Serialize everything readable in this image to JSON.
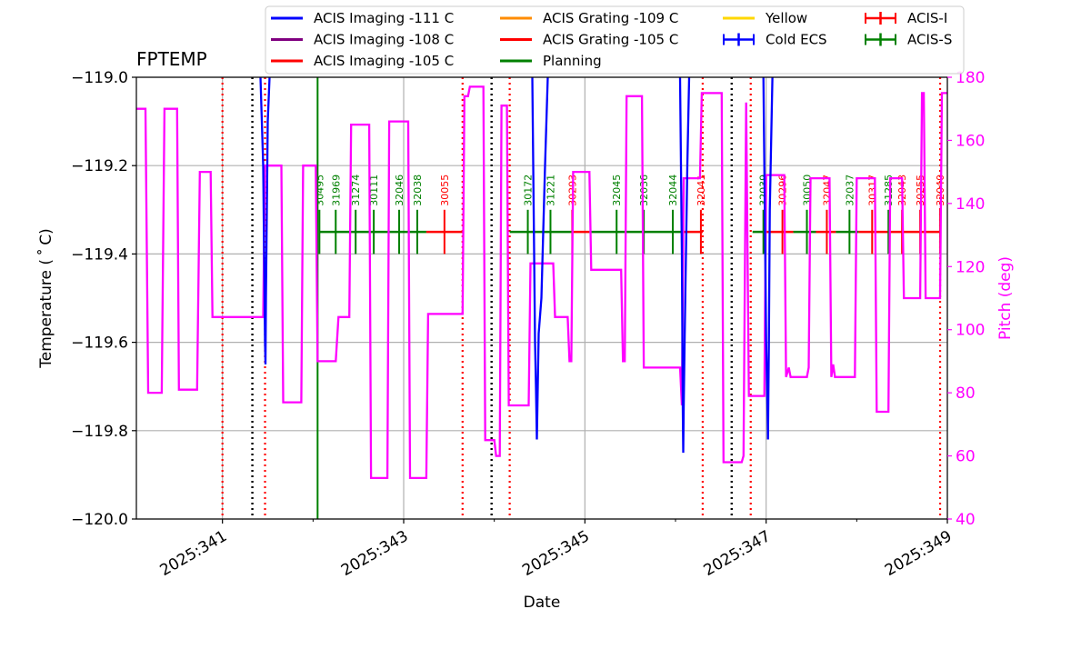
{
  "chart_data": {
    "type": "line",
    "title": "FPTEMP",
    "xlabel": "Date",
    "ylabel": "Temperature ($^\\circ$C)",
    "ylabel_display": "Temperature ( ˚ C)",
    "y2label": "Pitch (deg)",
    "xlim": [
      340.05,
      349.0
    ],
    "ylim": [
      -120.0,
      -119.0
    ],
    "y2lim": [
      40,
      180
    ],
    "x_ticks": [
      {
        "value": 341,
        "label": "2025:341"
      },
      {
        "value": 343,
        "label": "2025:343"
      },
      {
        "value": 345,
        "label": "2025:345"
      },
      {
        "value": 347,
        "label": "2025:347"
      },
      {
        "value": 349,
        "label": "2025:349"
      }
    ],
    "x_minor_ticks": [
      342,
      344,
      346,
      348
    ],
    "y_ticks": [
      {
        "value": -119.0,
        "label": "−119.0"
      },
      {
        "value": -119.2,
        "label": "−119.2"
      },
      {
        "value": -119.4,
        "label": "−119.4"
      },
      {
        "value": -119.6,
        "label": "−119.6"
      },
      {
        "value": -119.8,
        "label": "−119.8"
      },
      {
        "value": -120.0,
        "label": "−120.0"
      }
    ],
    "y2_ticks": [
      {
        "value": 180,
        "label": "180"
      },
      {
        "value": 160,
        "label": "160"
      },
      {
        "value": 140,
        "label": "140"
      },
      {
        "value": 120,
        "label": "120"
      },
      {
        "value": 100,
        "label": "100"
      },
      {
        "value": 80,
        "label": "80"
      },
      {
        "value": 60,
        "label": "60"
      },
      {
        "value": 40,
        "label": "40"
      }
    ],
    "grid": true,
    "legend": {
      "position": "top",
      "columns": [
        [
          {
            "label": "ACIS Imaging -111 C",
            "color": "#0000ff",
            "style": "line"
          },
          {
            "label": "ACIS Imaging -108 C",
            "color": "#800080",
            "style": "line"
          },
          {
            "label": "ACIS Imaging -105 C",
            "color": "#ff0000",
            "style": "line"
          }
        ],
        [
          {
            "label": "ACIS Grating -109 C",
            "color": "#ff8c00",
            "style": "line"
          },
          {
            "label": "ACIS Grating -105 C",
            "color": "#ff0000",
            "style": "line"
          },
          {
            "label": "Planning",
            "color": "#008000",
            "style": "line"
          }
        ],
        [
          {
            "label": "Yellow",
            "color": "#ffd700",
            "style": "line"
          },
          {
            "label": "Cold ECS",
            "color": "#0000ff",
            "style": "errbar"
          }
        ],
        [
          {
            "label": "ACIS-I",
            "color": "#ff0000",
            "style": "errbar"
          },
          {
            "label": "ACIS-S",
            "color": "#008000",
            "style": "errbar"
          }
        ]
      ]
    },
    "temperature_series": {
      "name": "FPTEMP",
      "color": "#0000ff",
      "points": [
        [
          341.42,
          -119.0
        ],
        [
          341.45,
          -119.2
        ],
        [
          341.47,
          -119.6
        ],
        [
          341.475,
          -119.65
        ],
        [
          341.48,
          -119.5
        ],
        [
          341.5,
          -119.1
        ],
        [
          341.52,
          -119.0
        ],
        [
          344.42,
          -119.0
        ],
        [
          344.44,
          -119.4
        ],
        [
          344.45,
          -119.6
        ],
        [
          344.46,
          -119.7
        ],
        [
          344.47,
          -119.82
        ],
        [
          344.48,
          -119.7
        ],
        [
          344.49,
          -119.58
        ],
        [
          344.52,
          -119.5
        ],
        [
          344.56,
          -119.2
        ],
        [
          344.59,
          -119.0
        ],
        [
          346.05,
          -119.0
        ],
        [
          346.07,
          -119.4
        ],
        [
          346.08,
          -119.75
        ],
        [
          346.085,
          -119.85
        ],
        [
          346.09,
          -119.75
        ],
        [
          346.1,
          -119.6
        ],
        [
          346.13,
          -119.2
        ],
        [
          346.15,
          -119.0
        ],
        [
          346.97,
          -119.0
        ],
        [
          346.99,
          -119.4
        ],
        [
          347.0,
          -119.6
        ],
        [
          347.01,
          -119.7
        ],
        [
          347.02,
          -119.82
        ],
        [
          347.03,
          -119.6
        ],
        [
          347.04,
          -119.3
        ],
        [
          347.07,
          -119.0
        ]
      ]
    },
    "pitch_series": {
      "name": "Pitch",
      "color": "#ff00ff",
      "points": [
        [
          340.05,
          170
        ],
        [
          340.15,
          170
        ],
        [
          340.18,
          80
        ],
        [
          340.33,
          80
        ],
        [
          340.36,
          170
        ],
        [
          340.5,
          170
        ],
        [
          340.52,
          81
        ],
        [
          340.72,
          81
        ],
        [
          340.75,
          150
        ],
        [
          340.87,
          150
        ],
        [
          340.89,
          104
        ],
        [
          341.45,
          104
        ],
        [
          341.47,
          152
        ],
        [
          341.65,
          152
        ],
        [
          341.67,
          77
        ],
        [
          341.87,
          77
        ],
        [
          341.89,
          152
        ],
        [
          342.03,
          152
        ],
        [
          342.05,
          90
        ],
        [
          342.25,
          90
        ],
        [
          342.28,
          104
        ],
        [
          342.4,
          104
        ],
        [
          342.42,
          165
        ],
        [
          342.62,
          165
        ],
        [
          342.64,
          53
        ],
        [
          342.82,
          53
        ],
        [
          342.84,
          166
        ],
        [
          343.05,
          166
        ],
        [
          343.07,
          53
        ],
        [
          343.25,
          53
        ],
        [
          343.27,
          105
        ],
        [
          343.65,
          105
        ],
        [
          343.67,
          174
        ],
        [
          343.71,
          174
        ],
        [
          343.73,
          177
        ],
        [
          343.88,
          177
        ],
        [
          343.9,
          65
        ],
        [
          344.0,
          65
        ],
        [
          344.02,
          60
        ],
        [
          344.06,
          60
        ],
        [
          344.08,
          171
        ],
        [
          344.14,
          171
        ],
        [
          344.16,
          76
        ],
        [
          344.38,
          76
        ],
        [
          344.4,
          121
        ],
        [
          344.65,
          121
        ],
        [
          344.67,
          104
        ],
        [
          344.81,
          104
        ],
        [
          344.83,
          90
        ],
        [
          344.85,
          90
        ],
        [
          344.87,
          150
        ],
        [
          345.05,
          150
        ],
        [
          345.07,
          119
        ],
        [
          345.4,
          119
        ],
        [
          345.42,
          90
        ],
        [
          345.44,
          90
        ],
        [
          345.46,
          174
        ],
        [
          345.63,
          174
        ],
        [
          345.65,
          88
        ],
        [
          346.05,
          88
        ],
        [
          346.07,
          76
        ],
        [
          346.09,
          148
        ],
        [
          346.27,
          148
        ],
        [
          346.29,
          175
        ],
        [
          346.51,
          175
        ],
        [
          346.53,
          58
        ],
        [
          346.73,
          58
        ],
        [
          346.75,
          60
        ],
        [
          346.78,
          172
        ],
        [
          346.81,
          79
        ],
        [
          346.98,
          79
        ],
        [
          347.0,
          149
        ],
        [
          347.2,
          149
        ],
        [
          347.22,
          85
        ],
        [
          347.25,
          88
        ],
        [
          347.27,
          85
        ],
        [
          347.45,
          85
        ],
        [
          347.47,
          88
        ],
        [
          347.49,
          148
        ],
        [
          347.7,
          148
        ],
        [
          347.72,
          85
        ],
        [
          347.74,
          89
        ],
        [
          347.76,
          85
        ],
        [
          347.98,
          85
        ],
        [
          348.0,
          148
        ],
        [
          348.2,
          148
        ],
        [
          348.22,
          74
        ],
        [
          348.35,
          74
        ],
        [
          348.37,
          148
        ],
        [
          348.5,
          148
        ],
        [
          348.52,
          110
        ],
        [
          348.7,
          110
        ],
        [
          348.72,
          175
        ],
        [
          348.74,
          175
        ],
        [
          348.76,
          110
        ],
        [
          348.92,
          110
        ],
        [
          348.94,
          175
        ],
        [
          349.0,
          175
        ]
      ]
    },
    "ecs_vlines": {
      "color": "#000000",
      "style": "dotted",
      "x": [
        341.33,
        343.97,
        346.62
      ]
    },
    "comm_vlines": {
      "color": "#ff0000",
      "style": "dotted",
      "x": [
        341.0,
        341.47,
        343.65,
        344.17,
        346.3,
        346.83,
        348.92
      ]
    },
    "planning_vline": {
      "color": "#008000",
      "x": 342.05
    },
    "instrument_segments": [
      {
        "instrument": "ACIS-S",
        "color": "#008000",
        "start": 342.07,
        "end": 343.25
      },
      {
        "instrument": "ACIS-I",
        "color": "#ff0000",
        "start": 343.25,
        "end": 343.65
      },
      {
        "instrument": "ACIS-S",
        "color": "#008000",
        "start": 344.17,
        "end": 344.86
      },
      {
        "instrument": "ACIS-I",
        "color": "#ff0000",
        "start": 344.86,
        "end": 345.05
      },
      {
        "instrument": "ACIS-S",
        "color": "#008000",
        "start": 345.05,
        "end": 346.08
      },
      {
        "instrument": "ACIS-I",
        "color": "#ff0000",
        "start": 346.08,
        "end": 346.3
      },
      {
        "instrument": "ACIS-S",
        "color": "#008000",
        "start": 346.85,
        "end": 347.0
      },
      {
        "instrument": "ACIS-I",
        "color": "#ff0000",
        "start": 347.0,
        "end": 347.3
      },
      {
        "instrument": "ACIS-S",
        "color": "#008000",
        "start": 347.3,
        "end": 347.55
      },
      {
        "instrument": "ACIS-I",
        "color": "#ff0000",
        "start": 347.55,
        "end": 347.77
      },
      {
        "instrument": "ACIS-S",
        "color": "#008000",
        "start": 347.77,
        "end": 348.02
      },
      {
        "instrument": "ACIS-I",
        "color": "#ff0000",
        "start": 348.02,
        "end": 348.92
      }
    ],
    "obsids": [
      {
        "id": "30495",
        "x": 342.07,
        "color": "#008000"
      },
      {
        "id": "31969",
        "x": 342.25,
        "color": "#008000"
      },
      {
        "id": "31274",
        "x": 342.47,
        "color": "#008000"
      },
      {
        "id": "30111",
        "x": 342.67,
        "color": "#008000"
      },
      {
        "id": "32046",
        "x": 342.95,
        "color": "#008000"
      },
      {
        "id": "32038",
        "x": 343.15,
        "color": "#008000"
      },
      {
        "id": "30055",
        "x": 343.45,
        "color": "#ff0000"
      },
      {
        "id": "30172",
        "x": 344.37,
        "color": "#008000"
      },
      {
        "id": "31221",
        "x": 344.62,
        "color": "#008000"
      },
      {
        "id": "30293",
        "x": 344.86,
        "color": "#ff0000"
      },
      {
        "id": "32045",
        "x": 345.35,
        "color": "#008000"
      },
      {
        "id": "32036",
        "x": 345.65,
        "color": "#008000"
      },
      {
        "id": "32044",
        "x": 345.97,
        "color": "#008000"
      },
      {
        "id": "32041",
        "x": 346.28,
        "color": "#ff0000"
      },
      {
        "id": "32039",
        "x": 346.97,
        "color": "#008000"
      },
      {
        "id": "30296",
        "x": 347.18,
        "color": "#ff0000"
      },
      {
        "id": "30050",
        "x": 347.45,
        "color": "#008000"
      },
      {
        "id": "32047",
        "x": 347.67,
        "color": "#ff0000"
      },
      {
        "id": "32037",
        "x": 347.92,
        "color": "#008000"
      },
      {
        "id": "30317",
        "x": 348.17,
        "color": "#ff0000"
      },
      {
        "id": "31285",
        "x": 348.35,
        "color": "#008000"
      },
      {
        "id": "32043",
        "x": 348.5,
        "color": "#ff0000"
      },
      {
        "id": "30255",
        "x": 348.7,
        "color": "#ff0000"
      },
      {
        "id": "32040",
        "x": 348.92,
        "color": "#ff0000"
      }
    ]
  }
}
